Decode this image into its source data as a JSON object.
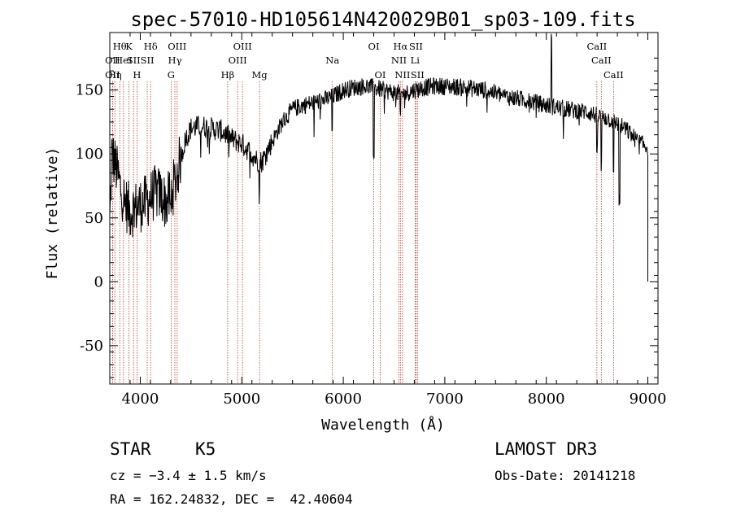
{
  "chart_data": {
    "type": "line",
    "title": "spec-57010-HD105614N420029B01_sp03-109.fits",
    "xlabel": "Wavelength (Å)",
    "ylabel": "Flux (relative)",
    "xlim": [
      3700,
      9100
    ],
    "ylim": [
      -80,
      195
    ],
    "xticks": [
      4000,
      5000,
      6000,
      7000,
      8000,
      9000
    ],
    "yticks": [
      -50,
      0,
      50,
      100,
      150
    ],
    "continuum": [
      [
        3700,
        45
      ],
      [
        3720,
        100
      ],
      [
        3760,
        90
      ],
      [
        3800,
        75
      ],
      [
        3850,
        62
      ],
      [
        3900,
        55
      ],
      [
        3950,
        58
      ],
      [
        4000,
        60
      ],
      [
        4050,
        62
      ],
      [
        4100,
        66
      ],
      [
        4150,
        70
      ],
      [
        4200,
        68
      ],
      [
        4250,
        62
      ],
      [
        4300,
        68
      ],
      [
        4350,
        80
      ],
      [
        4400,
        98
      ],
      [
        4450,
        112
      ],
      [
        4500,
        120
      ],
      [
        4600,
        122
      ],
      [
        4700,
        120
      ],
      [
        4800,
        118
      ],
      [
        4900,
        112
      ],
      [
        5000,
        108
      ],
      [
        5100,
        100
      ],
      [
        5150,
        95
      ],
      [
        5200,
        94
      ],
      [
        5300,
        110
      ],
      [
        5400,
        125
      ],
      [
        5500,
        135
      ],
      [
        5600,
        138
      ],
      [
        5700,
        140
      ],
      [
        5800,
        142
      ],
      [
        5900,
        145
      ],
      [
        6000,
        150
      ],
      [
        6100,
        152
      ],
      [
        6200,
        153
      ],
      [
        6300,
        152
      ],
      [
        6400,
        150
      ],
      [
        6500,
        148
      ],
      [
        6600,
        147
      ],
      [
        6700,
        150
      ],
      [
        6800,
        152
      ],
      [
        6900,
        153
      ],
      [
        7000,
        153
      ],
      [
        7200,
        152
      ],
      [
        7400,
        150
      ],
      [
        7600,
        145
      ],
      [
        7800,
        142
      ],
      [
        8000,
        138
      ],
      [
        8200,
        135
      ],
      [
        8400,
        133
      ],
      [
        8500,
        130
      ],
      [
        8600,
        128
      ],
      [
        8700,
        124
      ],
      [
        8800,
        118
      ],
      [
        8900,
        110
      ],
      [
        9000,
        105
      ]
    ],
    "absorption_features": [
      {
        "x": 4300,
        "depth": 15
      },
      {
        "x": 5175,
        "depth": 25
      },
      {
        "x": 5890,
        "depth": 25
      },
      {
        "x": 6300,
        "depth": 50
      },
      {
        "x": 6563,
        "depth": 20
      },
      {
        "x": 8498,
        "depth": 35
      },
      {
        "x": 8542,
        "depth": 40
      },
      {
        "x": 8662,
        "depth": 45
      },
      {
        "x": 8720,
        "depth": 60
      }
    ],
    "emission_spikes": [
      {
        "x": 8050,
        "height": 60
      }
    ],
    "line_markers": [
      {
        "wavelength": 3727,
        "row": 2,
        "label": "OII"
      },
      {
        "wavelength": 3750,
        "row": 2,
        "label": "Hη"
      },
      {
        "wavelength": 3798,
        "row": 0,
        "label": "Hθ"
      },
      {
        "wavelength": 3727,
        "row": 1,
        "label": "OII"
      },
      {
        "wavelength": 3835,
        "row": 1,
        "label": "HeI"
      },
      {
        "wavelength": 3889,
        "row": 0,
        "label": "K"
      },
      {
        "wavelength": 3934,
        "row": 1,
        "label": "SII"
      },
      {
        "wavelength": 3968,
        "row": 2,
        "label": "H"
      },
      {
        "wavelength": 4102,
        "row": 0,
        "label": "Hδ"
      },
      {
        "wavelength": 4069,
        "row": 1,
        "label": "SII"
      },
      {
        "wavelength": 4304,
        "row": 2,
        "label": "G"
      },
      {
        "wavelength": 4341,
        "row": 1,
        "label": "Hγ"
      },
      {
        "wavelength": 4363,
        "row": 0,
        "label": "OIII"
      },
      {
        "wavelength": 4861,
        "row": 2,
        "label": "Hβ"
      },
      {
        "wavelength": 4959,
        "row": 1,
        "label": "OIII"
      },
      {
        "wavelength": 5007,
        "row": 0,
        "label": "OIII"
      },
      {
        "wavelength": 5175,
        "row": 2,
        "label": "Mg"
      },
      {
        "wavelength": 5893,
        "row": 1,
        "label": "Na"
      },
      {
        "wavelength": 6300,
        "row": 0,
        "label": "OI"
      },
      {
        "wavelength": 6364,
        "row": 2,
        "label": "OI"
      },
      {
        "wavelength": 6548,
        "row": 1,
        "label": "NII"
      },
      {
        "wavelength": 6563,
        "row": 0,
        "label": "Hα"
      },
      {
        "wavelength": 6583,
        "row": 2,
        "label": "NII"
      },
      {
        "wavelength": 6707,
        "row": 1,
        "label": "Li"
      },
      {
        "wavelength": 6716,
        "row": 0,
        "label": "SII"
      },
      {
        "wavelength": 6731,
        "row": 2,
        "label": "SII"
      },
      {
        "wavelength": 8498,
        "row": 0,
        "label": "CaII"
      },
      {
        "wavelength": 8542,
        "row": 1,
        "label": "CaII"
      },
      {
        "wavelength": 8662,
        "row": 2,
        "label": "CaII"
      }
    ]
  },
  "info": {
    "object_class": "STAR",
    "subclass": "K5",
    "cz": "cz = −3.4 ± 1.5 km/s",
    "coords": "RA = 162.24832, DEC =  42.40604",
    "survey": "LAMOST DR3",
    "obs_date": "Obs-Date: 20141218"
  },
  "colors": {
    "line_marker": "#c0392b",
    "spectrum": "#000000",
    "axes": "#000000"
  }
}
